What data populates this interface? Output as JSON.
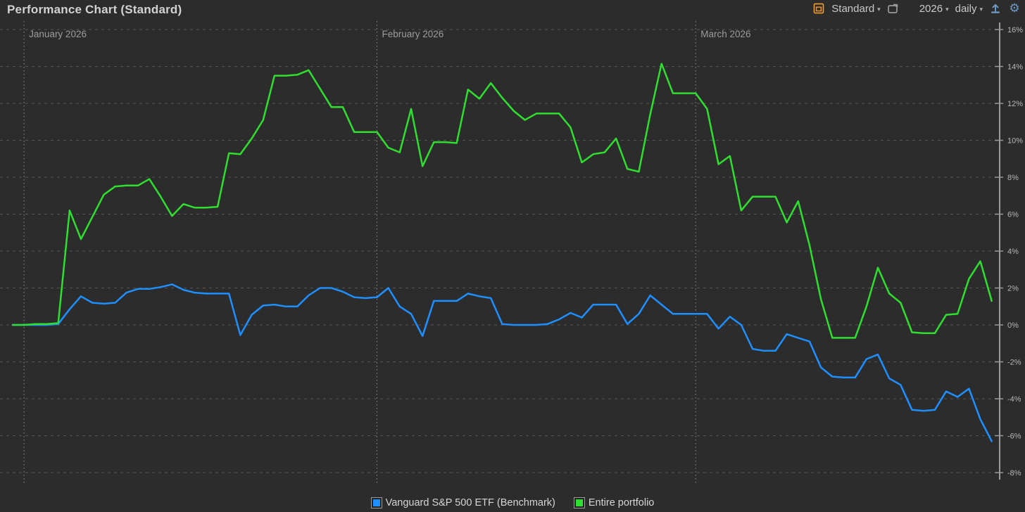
{
  "header": {
    "title": "Performance Chart (Standard)",
    "view_mode_label": "Standard",
    "year_label": "2026",
    "interval_label": "daily",
    "caret_glyph": "▾",
    "gear_glyph": "⚙",
    "accent_orange": "#e8962e",
    "icon_blue": "#6b98c2"
  },
  "chart_data": {
    "type": "line",
    "title": "Performance Chart (Standard)",
    "x_unit": "daily points, Dec 31 2025 – Mar 27 2026",
    "months": [
      {
        "label": "January 2026",
        "day": 1
      },
      {
        "label": "February 2026",
        "day": 32
      },
      {
        "label": "March 2026",
        "day": 60
      }
    ],
    "y_ticks": [
      16,
      14,
      12,
      10,
      8,
      6,
      4,
      2,
      0,
      -2,
      -4,
      -6,
      -8
    ],
    "y_tick_labels": [
      "16%",
      "14%",
      "12%",
      "10%",
      "8%",
      "6%",
      "4%",
      "2%",
      "0%",
      "-2%",
      "-4%",
      "-6%",
      "-8%"
    ],
    "ylim": [
      -8.9,
      16.45
    ],
    "grid": "dashed horizontal at each 2%, dashed vertical at month starts",
    "legend_position": "bottom-center",
    "series": [
      {
        "name": "Vanguard S&P 500 ETF (Benchmark)",
        "color": "#1e8fff",
        "values": [
          0,
          0,
          0,
          0,
          0.05,
          0.85,
          1.55,
          1.2,
          1.15,
          1.2,
          1.75,
          1.95,
          1.95,
          2.05,
          2.2,
          1.9,
          1.75,
          1.7,
          1.7,
          1.7,
          -0.55,
          0.55,
          1.05,
          1.1,
          1.0,
          1.0,
          1.6,
          2.0,
          2.0,
          1.8,
          1.5,
          1.45,
          1.5,
          2.0,
          1.0,
          0.6,
          -0.6,
          1.3,
          1.3,
          1.3,
          1.7,
          1.55,
          1.45,
          0.05,
          0,
          0,
          0,
          0.05,
          0.3,
          0.65,
          0.4,
          1.1,
          1.1,
          1.1,
          0.05,
          0.6,
          1.6,
          1.1,
          0.6,
          0.6,
          0.6,
          0.6,
          -0.2,
          0.45,
          0,
          -1.3,
          -1.4,
          -1.4,
          -0.5,
          -0.7,
          -0.9,
          -2.3,
          -2.8,
          -2.85,
          -2.85,
          -1.85,
          -1.6,
          -2.9,
          -3.25,
          -4.6,
          -4.65,
          -4.6,
          -3.6,
          -3.9,
          -3.45,
          -5.1,
          -6.3
        ]
      },
      {
        "name": "Entire portfolio",
        "color": "#2fdf2f",
        "values": [
          0,
          0,
          0.05,
          0.05,
          0.1,
          6.2,
          4.65,
          5.85,
          7.05,
          7.5,
          7.55,
          7.55,
          7.9,
          6.95,
          5.9,
          6.55,
          6.35,
          6.35,
          6.4,
          9.3,
          9.25,
          10.1,
          11.1,
          13.5,
          13.5,
          13.55,
          13.8,
          12.8,
          11.8,
          11.8,
          10.45,
          10.45,
          10.45,
          9.6,
          9.35,
          11.7,
          8.6,
          9.9,
          9.9,
          9.85,
          12.75,
          12.25,
          13.1,
          12.3,
          11.6,
          11.1,
          11.45,
          11.45,
          11.45,
          10.7,
          8.8,
          9.25,
          9.35,
          10.1,
          8.45,
          8.3,
          11.4,
          14.15,
          12.55,
          12.55,
          12.55,
          11.7,
          8.7,
          9.15,
          6.2,
          6.95,
          6.95,
          6.95,
          5.55,
          6.7,
          4.3,
          1.4,
          -0.7,
          -0.7,
          -0.7,
          1.0,
          3.1,
          1.7,
          1.2,
          -0.4,
          -0.45,
          -0.45,
          0.55,
          0.6,
          2.5,
          3.45,
          1.3
        ]
      }
    ]
  }
}
